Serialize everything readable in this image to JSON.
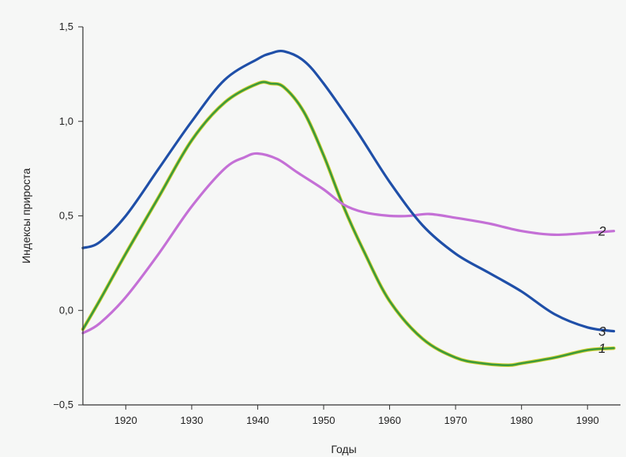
{
  "chart_data": {
    "type": "line",
    "title": "",
    "xlabel": "Годы",
    "ylabel": "Индексы прироста",
    "xlim": [
      1913.5,
      1995
    ],
    "ylim": [
      -0.5,
      1.5
    ],
    "xticks": [
      1920,
      1930,
      1940,
      1950,
      1960,
      1970,
      1980,
      1990
    ],
    "xtick_labels": [
      "1920",
      "1930",
      "1940",
      "1950",
      "1960",
      "1970",
      "1980",
      "1990"
    ],
    "yticks": [
      -0.5,
      0.0,
      0.5,
      1.0,
      1.5
    ],
    "ytick_labels": [
      "−0,5",
      "0,0",
      "0,5",
      "1,0",
      "1,5"
    ],
    "grid": false,
    "legend": "none",
    "series": [
      {
        "label": "1",
        "color": "#3c9a3a",
        "x": [
          1913.5,
          1916,
          1920,
          1925,
          1930,
          1935,
          1940,
          1942,
          1944,
          1947,
          1950,
          1953,
          1956,
          1960,
          1965,
          1970,
          1974,
          1978,
          1980,
          1985,
          1990,
          1994
        ],
        "y": [
          -0.1,
          0.05,
          0.3,
          0.6,
          0.9,
          1.1,
          1.2,
          1.2,
          1.18,
          1.05,
          0.82,
          0.55,
          0.32,
          0.05,
          -0.15,
          -0.25,
          -0.28,
          -0.29,
          -0.28,
          -0.25,
          -0.21,
          -0.2
        ]
      },
      {
        "label": "2",
        "color": "#c470d6",
        "x": [
          1913.5,
          1916,
          1920,
          1925,
          1930,
          1935,
          1938,
          1940,
          1943,
          1946,
          1950,
          1953,
          1956,
          1960,
          1963,
          1966,
          1970,
          1975,
          1980,
          1985,
          1990,
          1994
        ],
        "y": [
          -0.12,
          -0.07,
          0.07,
          0.3,
          0.55,
          0.75,
          0.81,
          0.83,
          0.8,
          0.73,
          0.64,
          0.56,
          0.52,
          0.5,
          0.5,
          0.51,
          0.49,
          0.46,
          0.42,
          0.4,
          0.41,
          0.42
        ]
      },
      {
        "label": "3",
        "color": "#1f4fa8",
        "x": [
          1913.5,
          1916,
          1920,
          1925,
          1930,
          1935,
          1940,
          1942,
          1944,
          1947,
          1950,
          1955,
          1960,
          1965,
          1970,
          1975,
          1980,
          1985,
          1990,
          1994
        ],
        "y": [
          0.33,
          0.36,
          0.5,
          0.75,
          1.0,
          1.22,
          1.33,
          1.36,
          1.37,
          1.32,
          1.2,
          0.95,
          0.68,
          0.45,
          0.3,
          0.2,
          0.1,
          -0.02,
          -0.09,
          -0.11
        ]
      }
    ]
  }
}
